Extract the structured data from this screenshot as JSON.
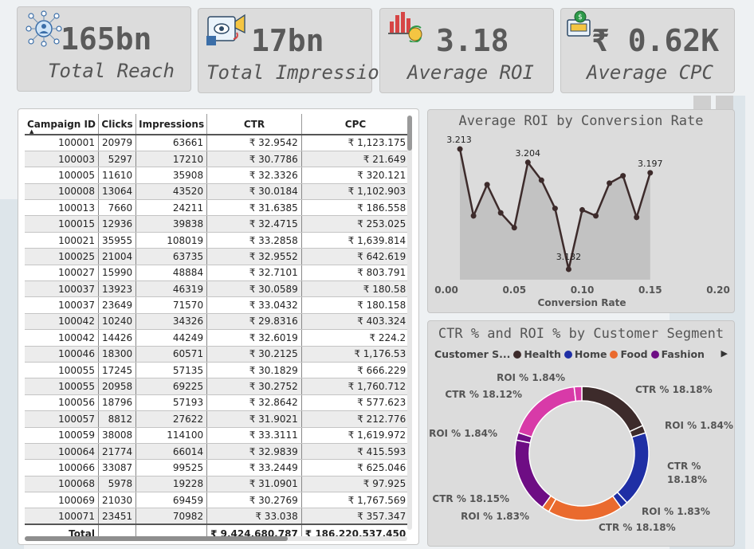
{
  "kpis": [
    {
      "value": "165bn",
      "label": "Total Reach",
      "icon": "network-people-icon"
    },
    {
      "value": "17bn",
      "label": "Total Impression",
      "icon": "marketing-megaphone-icon"
    },
    {
      "value": "3.18",
      "label": "Average ROI",
      "icon": "bar-chart-growth-icon"
    },
    {
      "value": "₹ 0.62K",
      "label": "Average CPC",
      "icon": "ads-coin-icon"
    }
  ],
  "table": {
    "columns": [
      "Campaign ID",
      "Clicks",
      "Impressions",
      "CTR",
      "CPC"
    ],
    "rows": [
      [
        "100001",
        "20979",
        "63661",
        "₹ 32.9542",
        "₹ 1,123.175"
      ],
      [
        "100003",
        "5297",
        "17210",
        "₹ 30.7786",
        "₹ 21.649"
      ],
      [
        "100005",
        "11610",
        "35908",
        "₹ 32.3326",
        "₹ 320.121"
      ],
      [
        "100008",
        "13064",
        "43520",
        "₹ 30.0184",
        "₹ 1,102.903"
      ],
      [
        "100013",
        "7660",
        "24211",
        "₹ 31.6385",
        "₹ 186.558"
      ],
      [
        "100015",
        "12936",
        "39838",
        "₹ 32.4715",
        "₹ 253.025"
      ],
      [
        "100021",
        "35955",
        "108019",
        "₹ 33.2858",
        "₹ 1,639.814"
      ],
      [
        "100025",
        "21004",
        "63735",
        "₹ 32.9552",
        "₹ 642.619"
      ],
      [
        "100027",
        "15990",
        "48884",
        "₹ 32.7101",
        "₹ 803.791"
      ],
      [
        "100037",
        "13923",
        "46319",
        "₹ 30.0589",
        "₹ 180.58"
      ],
      [
        "100037",
        "23649",
        "71570",
        "₹ 33.0432",
        "₹ 180.158"
      ],
      [
        "100042",
        "10240",
        "34326",
        "₹ 29.8316",
        "₹ 403.324"
      ],
      [
        "100042",
        "14426",
        "44249",
        "₹ 32.6019",
        "₹ 224.2"
      ],
      [
        "100046",
        "18300",
        "60571",
        "₹ 30.2125",
        "₹ 1,176.53"
      ],
      [
        "100055",
        "17245",
        "57135",
        "₹ 30.1829",
        "₹ 666.229"
      ],
      [
        "100055",
        "20958",
        "69225",
        "₹ 30.2752",
        "₹ 1,760.712"
      ],
      [
        "100056",
        "18796",
        "57193",
        "₹ 32.8642",
        "₹ 577.623"
      ],
      [
        "100057",
        "8812",
        "27622",
        "₹ 31.9021",
        "₹ 212.776"
      ],
      [
        "100059",
        "38008",
        "114100",
        "₹ 33.3111",
        "₹ 1,619.972"
      ],
      [
        "100064",
        "21774",
        "66014",
        "₹ 32.9839",
        "₹ 415.593"
      ],
      [
        "100066",
        "33087",
        "99525",
        "₹ 33.2449",
        "₹ 625.046"
      ],
      [
        "100068",
        "5978",
        "19228",
        "₹ 31.0901",
        "₹ 97.925"
      ],
      [
        "100069",
        "21030",
        "69459",
        "₹ 30.2769",
        "₹ 1,767.569"
      ],
      [
        "100071",
        "23451",
        "70982",
        "₹ 33.038",
        "₹ 357.347"
      ]
    ],
    "total": {
      "label": "Total",
      "ctr": "₹ 9,424,680.787",
      "cpc": "₹ 186,220,537.450"
    }
  },
  "roi_chart": {
    "title": "Average ROI by Conversion Rate",
    "xlabel": "Conversion Rate",
    "x_ticks": [
      "0.00",
      "0.05",
      "0.10",
      "0.15",
      "0.20"
    ],
    "line_color": "#3d2b2b",
    "fill_color": "#bdbdbd"
  },
  "segment_chart": {
    "title": "CTR % and ROI % by Customer Segment",
    "legend_title": "Customer S...",
    "legend": [
      {
        "name": "Health",
        "color": "#3d2b2b"
      },
      {
        "name": "Home",
        "color": "#1f2fa5"
      },
      {
        "name": "Food",
        "color": "#ea6a2e"
      },
      {
        "name": "Fashion",
        "color": "#6e0d84"
      }
    ],
    "labels": [
      "CTR % 18.18%",
      "ROI % 1.84%",
      "CTR % 18.18%",
      "ROI % 1.83%",
      "CTR % 18.18%",
      "ROI % 1.83%",
      "CTR % 18.15%",
      "ROI % 1.84%",
      "CTR % 18.12%",
      "ROI % 1.84%"
    ]
  },
  "chart_data": [
    {
      "type": "line",
      "title": "Average ROI by Conversion Rate",
      "xlabel": "Conversion Rate",
      "xlim": [
        0,
        0.2
      ],
      "ylim": [
        3.125,
        3.22
      ],
      "x": [
        0.01,
        0.02,
        0.03,
        0.04,
        0.05,
        0.06,
        0.07,
        0.08,
        0.09,
        0.1,
        0.11,
        0.12,
        0.13,
        0.14,
        0.15
      ],
      "y": [
        3.213,
        3.168,
        3.189,
        3.17,
        3.16,
        3.204,
        3.192,
        3.173,
        3.132,
        3.172,
        3.168,
        3.19,
        3.195,
        3.167,
        3.197
      ],
      "data_labels": {
        "0.01": "3.213",
        "0.06": "3.204",
        "0.09": "3.132",
        "0.15": "3.197"
      },
      "grid": false,
      "legend": "none"
    },
    {
      "type": "pie",
      "title": "CTR % and ROI % by Customer Segment",
      "donut": true,
      "series": [
        {
          "name": "Health",
          "values": [
            18.18,
            1.84
          ]
        },
        {
          "name": "Home",
          "values": [
            18.18,
            1.83
          ]
        },
        {
          "name": "Food",
          "values": [
            18.18,
            1.83
          ]
        },
        {
          "name": "Fashion",
          "values": [
            18.15,
            1.84
          ]
        },
        {
          "name": "Pink",
          "values": [
            18.12,
            1.84
          ]
        }
      ],
      "categories": [
        "CTR %",
        "ROI %"
      ],
      "legend": "top"
    }
  ]
}
